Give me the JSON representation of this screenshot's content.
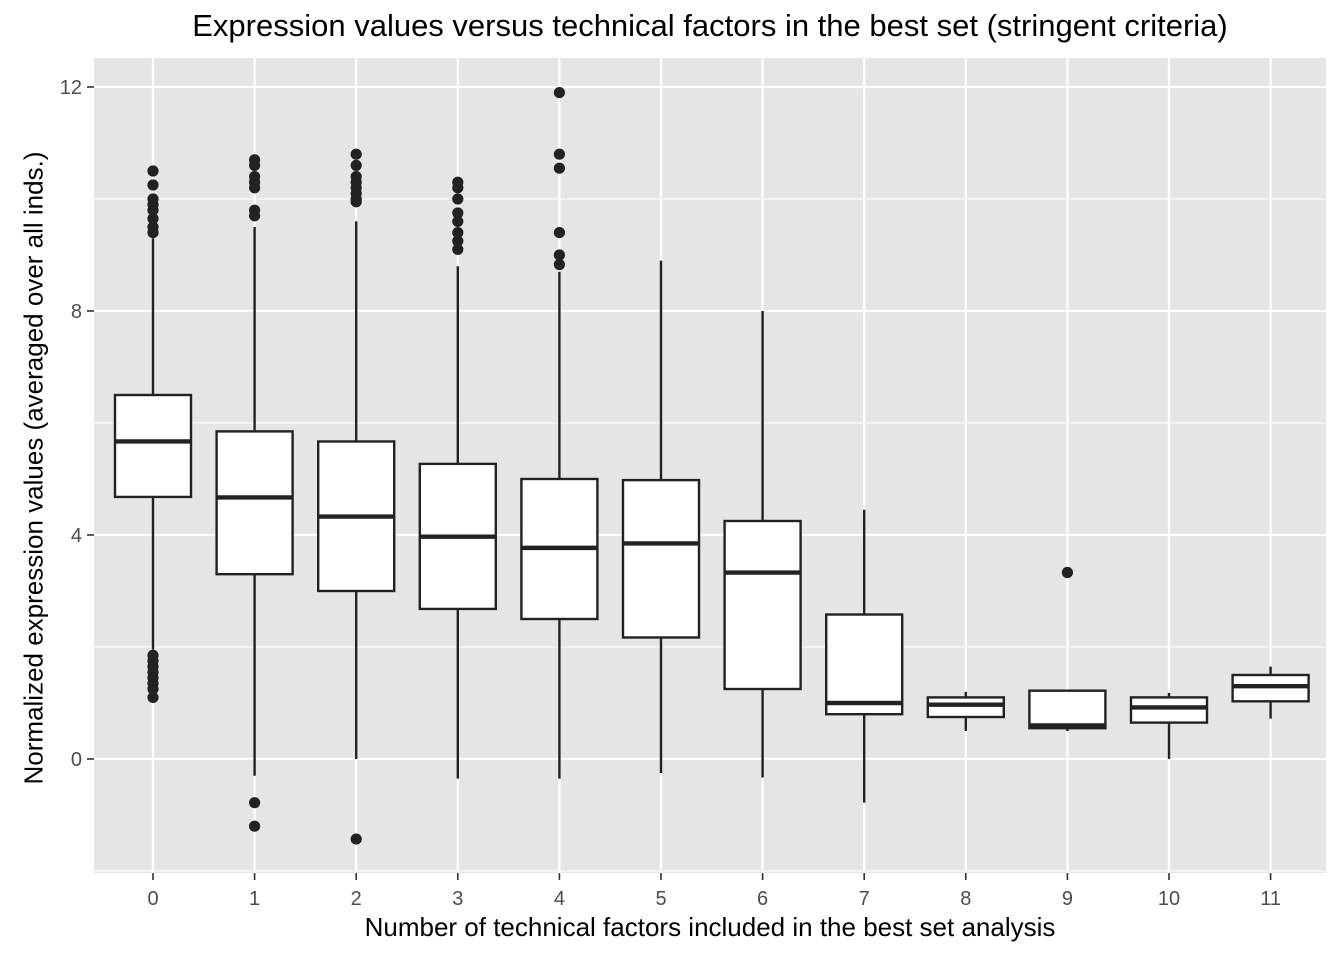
{
  "chart_data": {
    "type": "box",
    "title": "Expression values versus technical factors in the best set (stringent criteria)",
    "xlabel": "Number of technical factors included in the best set analysis",
    "ylabel": "Normalized expression values (averaged over all inds.)",
    "ylim": [
      -2.0,
      12.5
    ],
    "y_ticks": [
      0,
      4,
      8,
      12
    ],
    "grid": true,
    "background": "#e5e5e5",
    "categories": [
      "0",
      "1",
      "2",
      "3",
      "4",
      "5",
      "6",
      "7",
      "8",
      "9",
      "10",
      "11"
    ],
    "boxes": [
      {
        "x": "0",
        "whisker_low": 1.95,
        "q1": 4.68,
        "median": 5.67,
        "q3": 6.5,
        "whisker_high": 9.3,
        "outliers": [
          10.5,
          10.25,
          10.0,
          9.9,
          9.8,
          9.65,
          9.5,
          9.4,
          1.85,
          1.75,
          1.65,
          1.55,
          1.45,
          1.35,
          1.25,
          1.1
        ]
      },
      {
        "x": "1",
        "whisker_low": -0.3,
        "q1": 3.3,
        "median": 4.67,
        "q3": 5.85,
        "whisker_high": 9.5,
        "outliers": [
          10.7,
          10.6,
          10.4,
          10.3,
          10.2,
          9.8,
          9.7,
          -0.78,
          -1.2
        ]
      },
      {
        "x": "2",
        "whisker_low": 0.0,
        "q1": 3.0,
        "median": 4.33,
        "q3": 5.67,
        "whisker_high": 9.6,
        "outliers": [
          10.8,
          10.6,
          10.4,
          10.3,
          10.2,
          10.1,
          10.0,
          9.95,
          -1.43
        ]
      },
      {
        "x": "3",
        "whisker_low": -0.35,
        "q1": 2.68,
        "median": 3.97,
        "q3": 5.27,
        "whisker_high": 8.8,
        "outliers": [
          10.3,
          10.2,
          10.0,
          9.75,
          9.6,
          9.4,
          9.25,
          9.1
        ]
      },
      {
        "x": "4",
        "whisker_low": -0.35,
        "q1": 2.5,
        "median": 3.77,
        "q3": 5.0,
        "whisker_high": 8.7,
        "outliers": [
          11.9,
          10.8,
          10.55,
          9.4,
          9.0,
          8.83
        ]
      },
      {
        "x": "5",
        "whisker_low": -0.25,
        "q1": 2.17,
        "median": 3.85,
        "q3": 4.98,
        "whisker_high": 8.9,
        "outliers": []
      },
      {
        "x": "6",
        "whisker_low": -0.33,
        "q1": 1.25,
        "median": 3.33,
        "q3": 4.25,
        "whisker_high": 8.0,
        "outliers": []
      },
      {
        "x": "7",
        "whisker_low": -0.78,
        "q1": 0.8,
        "median": 1.0,
        "q3": 2.58,
        "whisker_high": 4.45,
        "outliers": []
      },
      {
        "x": "8",
        "whisker_low": 0.5,
        "q1": 0.75,
        "median": 0.97,
        "q3": 1.1,
        "whisker_high": 1.2,
        "outliers": []
      },
      {
        "x": "9",
        "whisker_low": 0.5,
        "q1": 0.55,
        "median": 0.6,
        "q3": 1.22,
        "whisker_high": 1.22,
        "outliers": [
          3.33
        ]
      },
      {
        "x": "10",
        "whisker_low": 0.0,
        "q1": 0.65,
        "median": 0.92,
        "q3": 1.1,
        "whisker_high": 1.18,
        "outliers": []
      },
      {
        "x": "11",
        "whisker_low": 0.72,
        "q1": 1.03,
        "median": 1.3,
        "q3": 1.5,
        "whisker_high": 1.65,
        "outliers": []
      }
    ]
  }
}
